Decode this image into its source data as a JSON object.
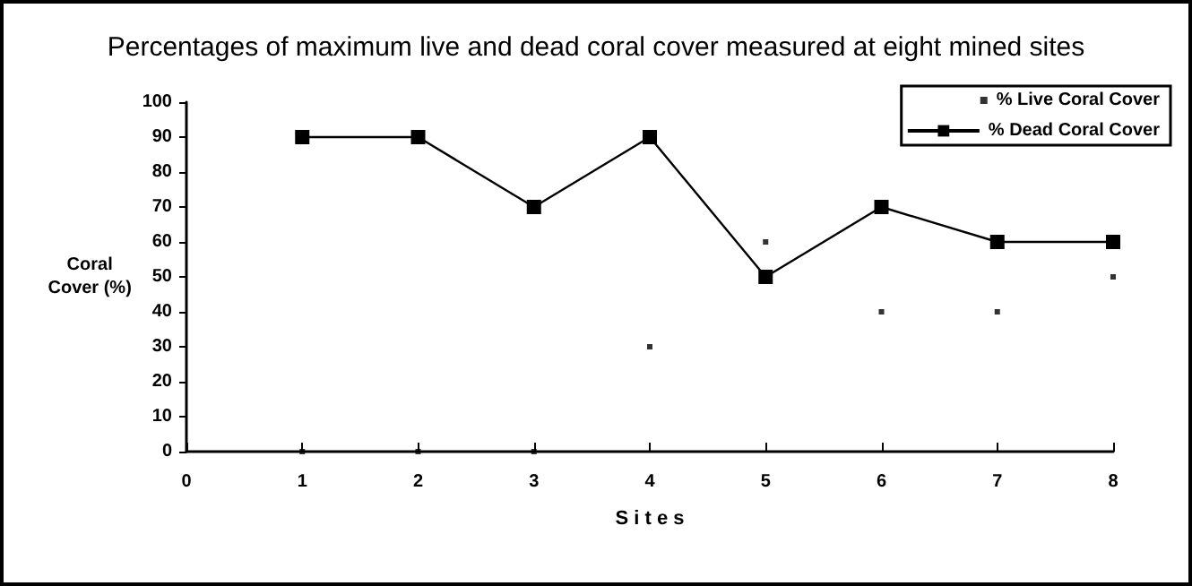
{
  "chart_data": {
    "type": "line",
    "title": "Percentages of maximum live and dead coral cover measured at eight mined sites",
    "xlabel": "S i t e s",
    "ylabel": "Coral\nCover (%)",
    "x": [
      1,
      2,
      3,
      4,
      5,
      6,
      7,
      8
    ],
    "series": [
      {
        "name": "% Live Coral Cover",
        "type": "scatter",
        "marker": "square",
        "color": "#000000",
        "values": [
          0,
          0,
          0,
          30,
          60,
          40,
          40,
          50
        ]
      },
      {
        "name": "% Dead Coral Cover",
        "marker": "square",
        "line_style": "solid",
        "color": "#000000",
        "values": [
          90,
          90,
          70,
          90,
          50,
          70,
          60,
          60
        ]
      }
    ],
    "xlim": [
      0,
      8
    ],
    "xticks": [
      0,
      1,
      2,
      3,
      4,
      5,
      6,
      7,
      8
    ],
    "ylim": [
      0,
      100
    ],
    "yticks": [
      0,
      10,
      20,
      30,
      40,
      50,
      60,
      70,
      80,
      90,
      100
    ],
    "grid": false,
    "legend": "top right"
  }
}
